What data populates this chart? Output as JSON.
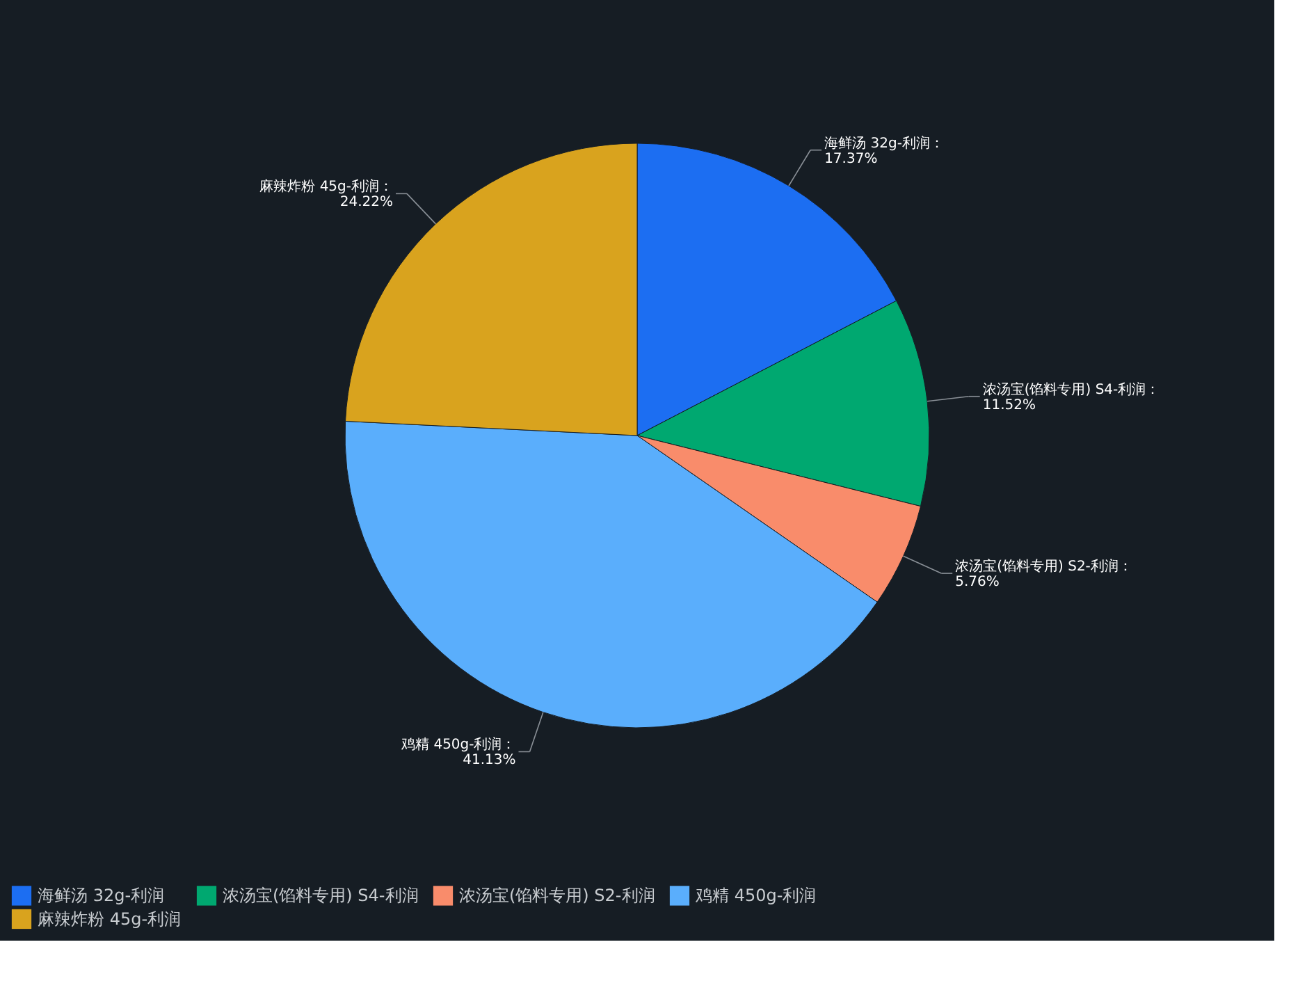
{
  "chart_data": {
    "type": "pie",
    "categories": [
      "海鲜汤 32g-利润",
      "浓汤宝(馅料专用) S4-利润",
      "浓汤宝(馅料专用) S2-利润",
      "鸡精 450g-利润",
      "麻辣炸粉 45g-利润"
    ],
    "values": [
      17.37,
      11.52,
      5.76,
      41.13,
      24.22
    ],
    "colors": [
      "#1c6ef2",
      "#00a870",
      "#f98c6b",
      "#5aaefc",
      "#d9a31e"
    ],
    "value_labels": [
      "海鲜汤 32g-利润：\n17.37%",
      "浓汤宝(馅料专用) S4-利润：\n11.52%",
      "浓汤宝(馅料专用) S2-利润：\n5.76%",
      "鸡精 450g-利润：\n41.13%",
      "麻辣炸粉 45g-利润：\n24.22%"
    ],
    "legend": "bottom"
  }
}
